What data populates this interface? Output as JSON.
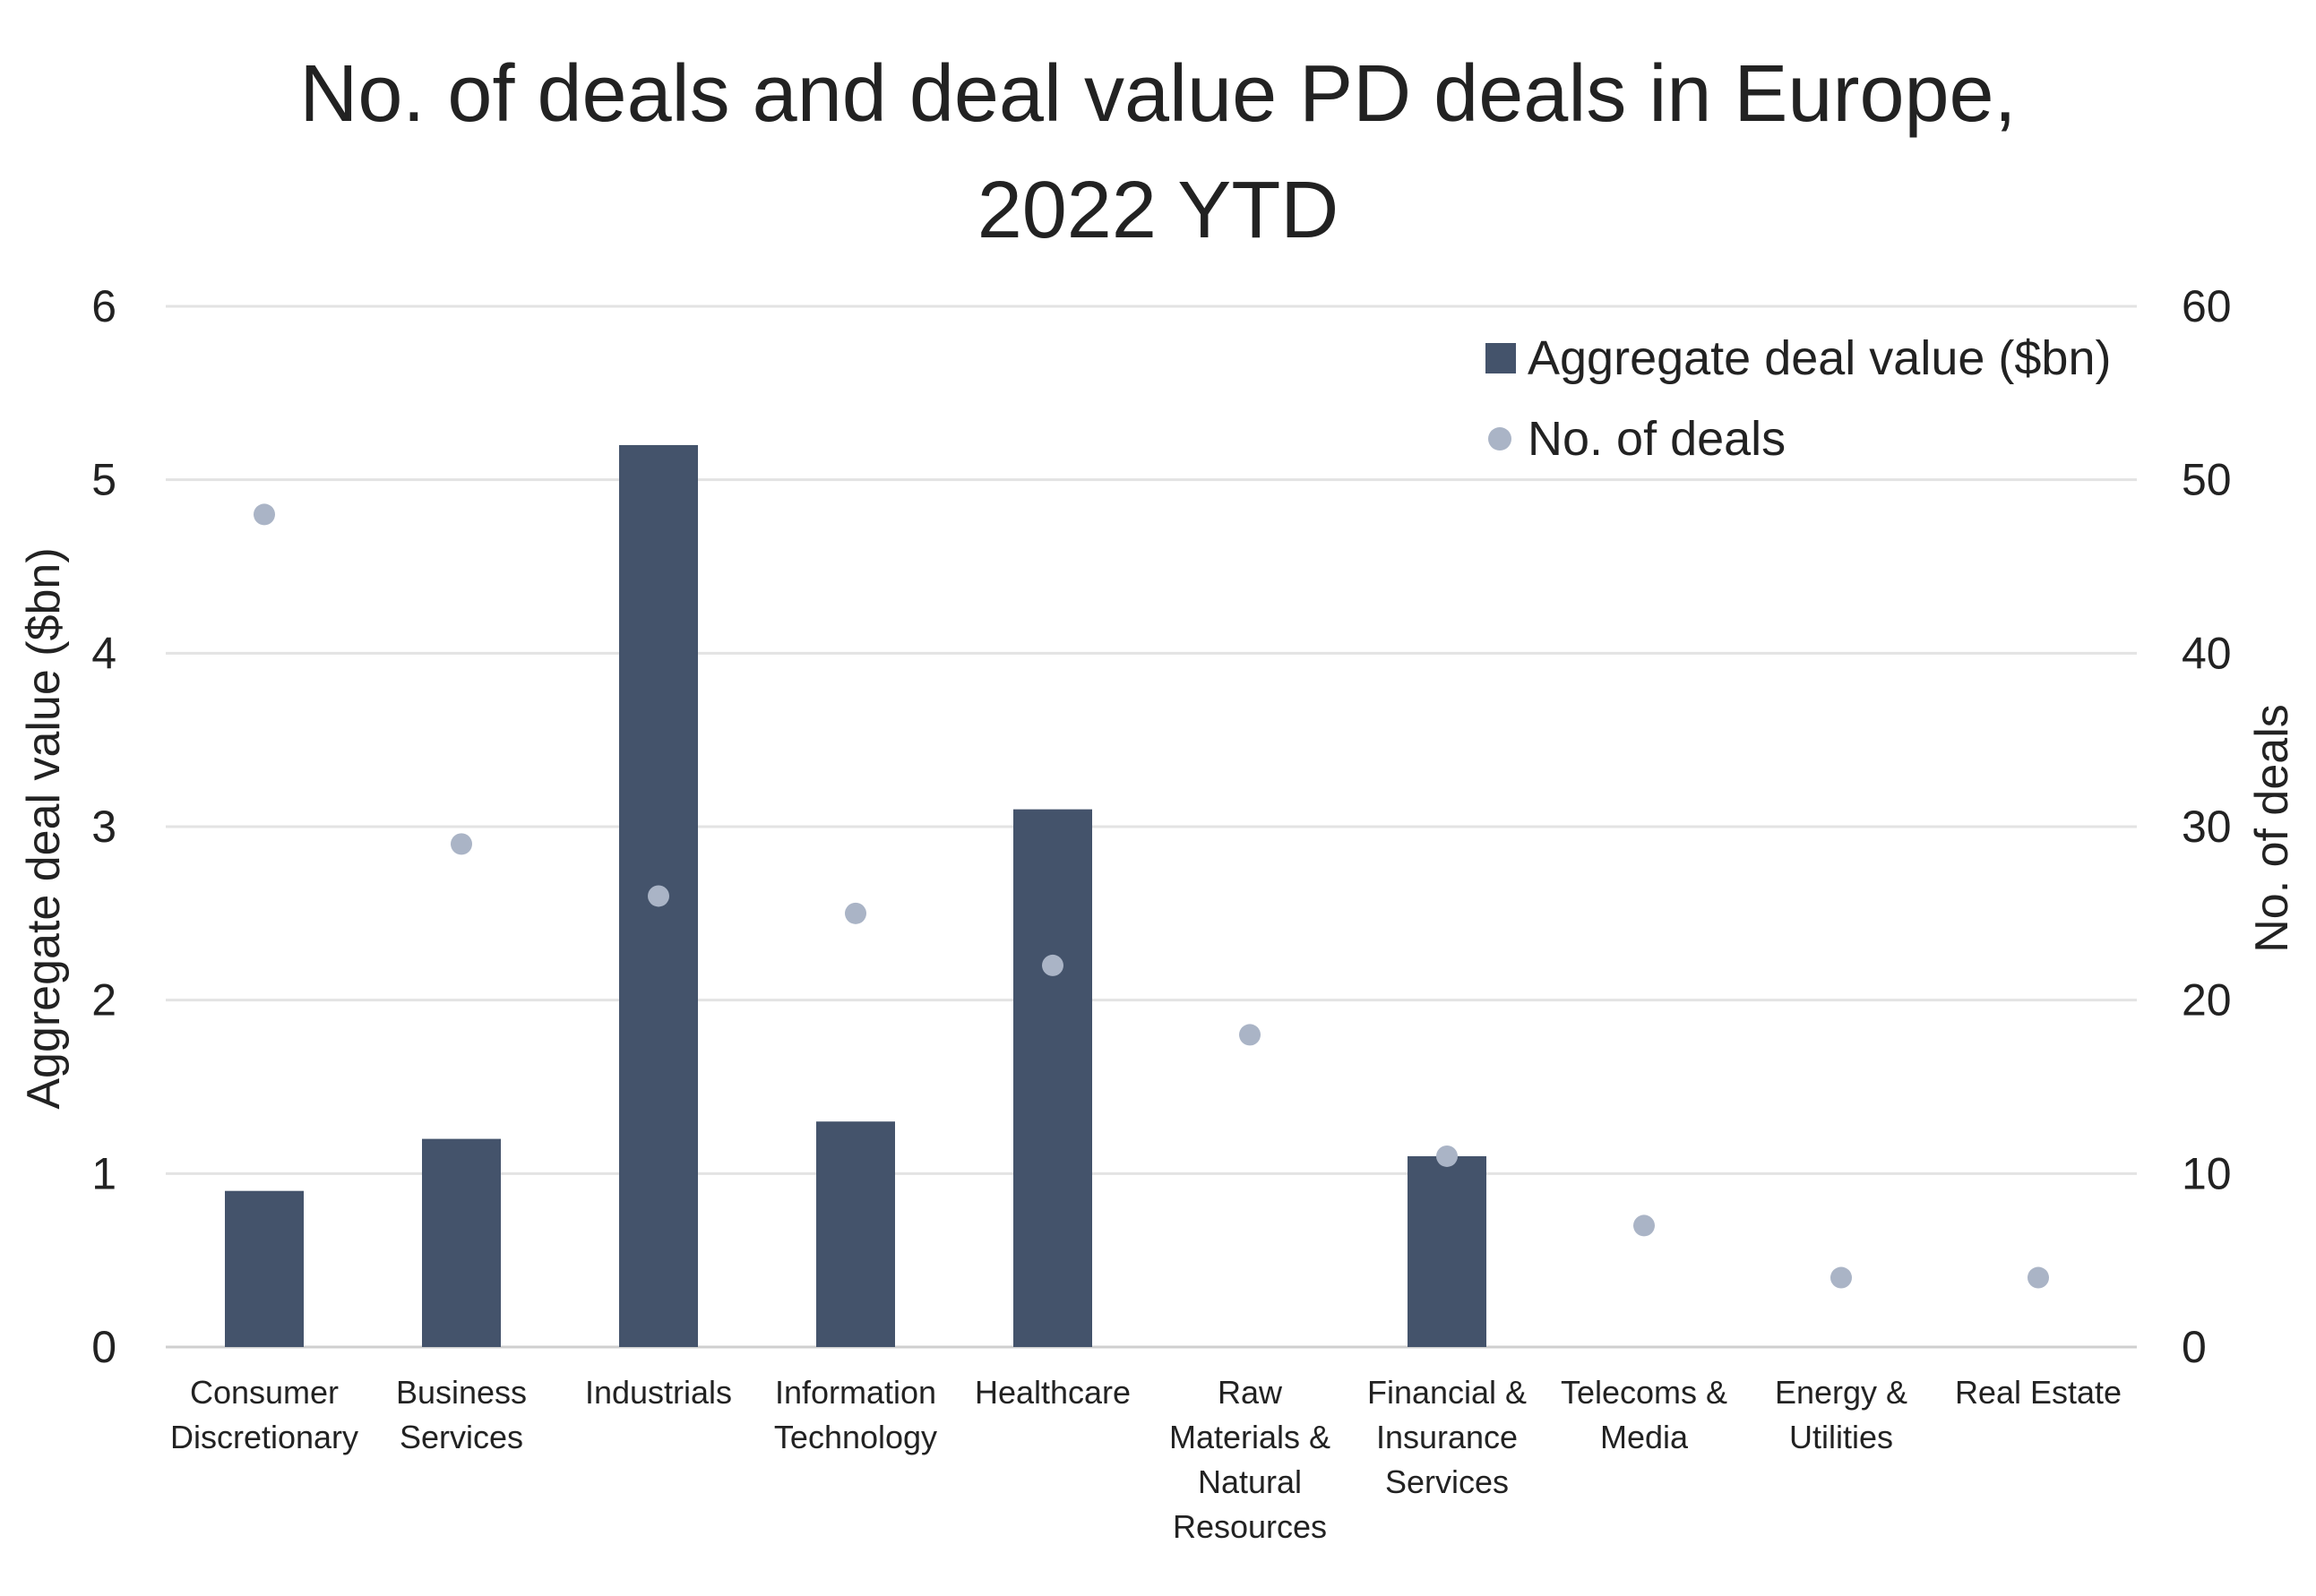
{
  "chart_data": {
    "type": "bar",
    "title": "No. of deals and deal value PD deals in Europe, 2022 YTD",
    "title_lines": [
      "No. of deals and deal value PD deals in Europe,",
      "2022 YTD"
    ],
    "categories": [
      [
        "Consumer",
        "Discretionary"
      ],
      [
        "Business",
        "Services"
      ],
      [
        "Industrials"
      ],
      [
        "Information",
        "Technology"
      ],
      [
        "Healthcare"
      ],
      [
        "Raw",
        "Materials &",
        "Natural",
        "Resources"
      ],
      [
        "Financial &",
        "Insurance",
        "Services"
      ],
      [
        "Telecoms &",
        "Media"
      ],
      [
        "Energy &",
        "Utilities"
      ],
      [
        "Real Estate"
      ]
    ],
    "series": [
      {
        "name": "Aggregate deal value ($bn)",
        "type": "bar",
        "axis": "left",
        "color": "#44536b",
        "values": [
          0.9,
          1.2,
          5.2,
          1.3,
          3.1,
          0,
          1.1,
          0,
          0,
          0
        ]
      },
      {
        "name": "No. of deals",
        "type": "scatter",
        "axis": "right",
        "color": "#aab4c6",
        "values": [
          48,
          29,
          26,
          25,
          22,
          18,
          11,
          7,
          4,
          4
        ]
      }
    ],
    "ylabel": "Aggregate deal value ($bn)",
    "ylim": [
      0,
      6
    ],
    "yticks": [
      "0",
      "1",
      "2",
      "3",
      "4",
      "5",
      "6"
    ],
    "y2label": "No. of deals",
    "y2lim": [
      0,
      60
    ],
    "y2ticks": [
      "0",
      "10",
      "20",
      "30",
      "40",
      "50",
      "60"
    ],
    "grid": true,
    "legend": "top-right"
  }
}
